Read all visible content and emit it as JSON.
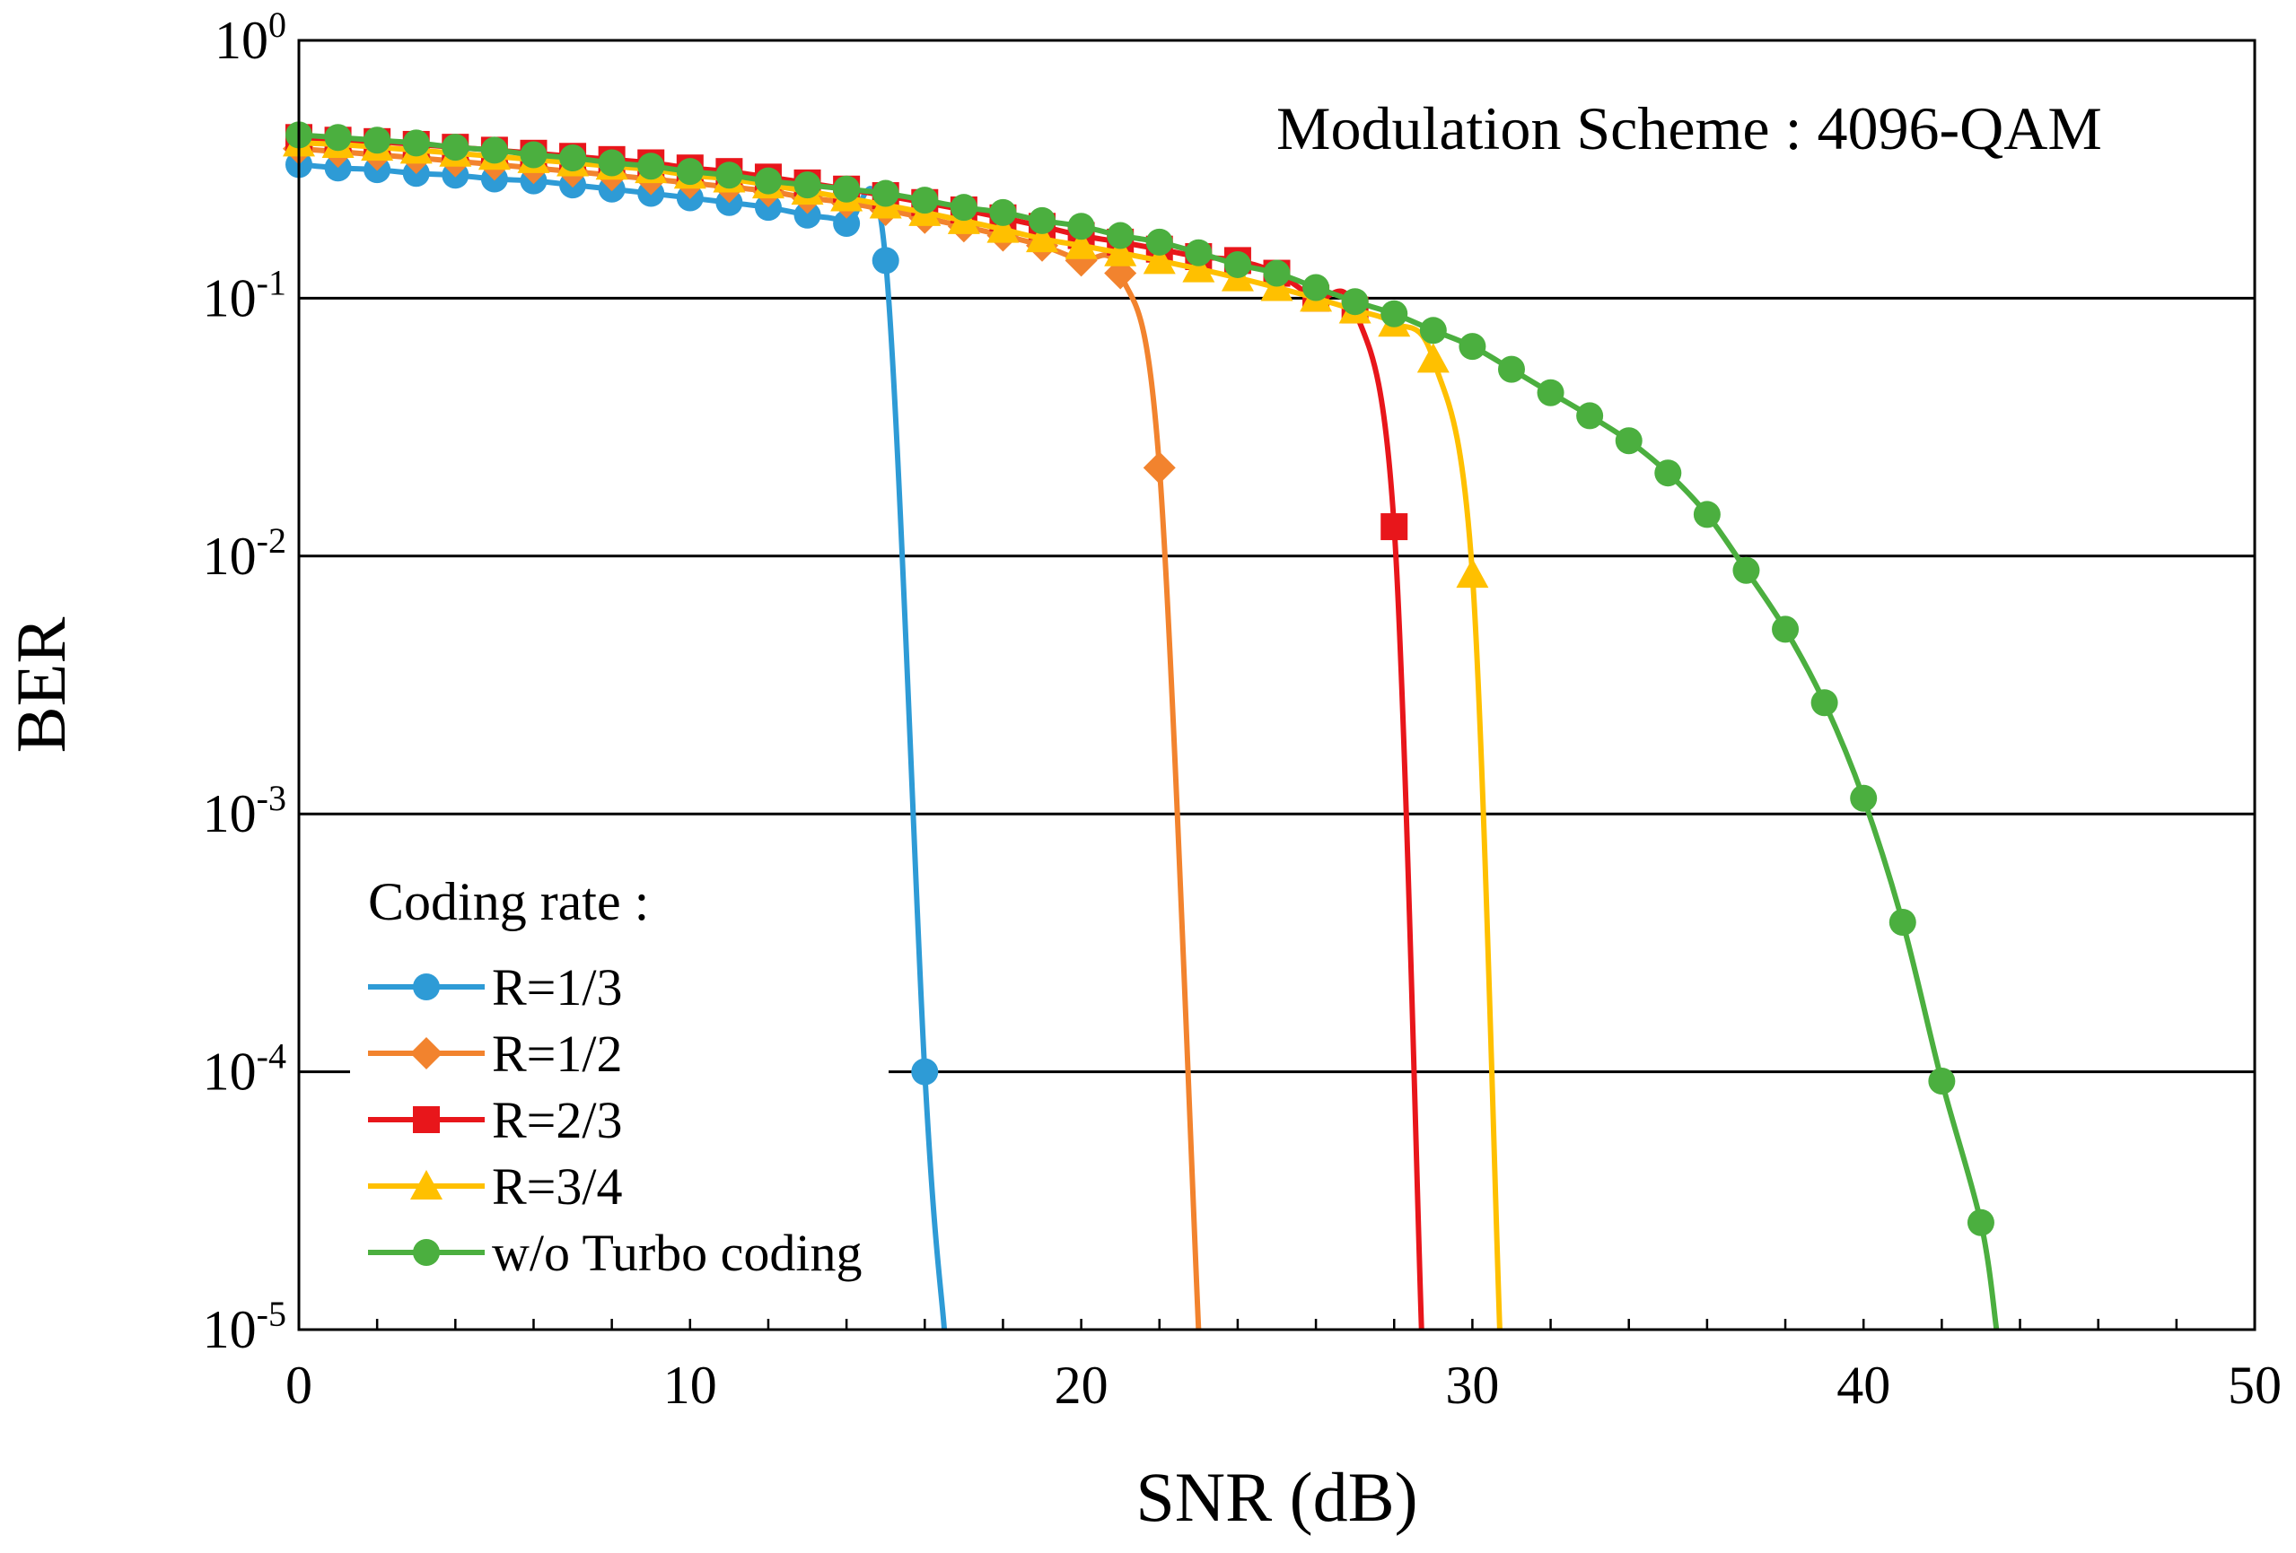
{
  "chart_data": {
    "type": "line",
    "title": "",
    "annotation": "Modulation Scheme : 4096-QAM",
    "xlabel": "SNR (dB)",
    "ylabel": "BER",
    "xlim": [
      0,
      50
    ],
    "ylim": [
      1e-05,
      1
    ],
    "yscale": "log",
    "x_ticks": [
      "0",
      "10",
      "20",
      "30",
      "40",
      "50"
    ],
    "y_ticks": [
      {
        "base": "10",
        "exp": "0",
        "value": 1
      },
      {
        "base": "10",
        "exp": "-1",
        "value": 0.1
      },
      {
        "base": "10",
        "exp": "-2",
        "value": 0.01
      },
      {
        "base": "10",
        "exp": "-3",
        "value": 0.001
      },
      {
        "base": "10",
        "exp": "-4",
        "value": 0.0001
      },
      {
        "base": "10",
        "exp": "-5",
        "value": 1e-05
      }
    ],
    "grid": "horizontal major lines",
    "legend": {
      "title": "Coding rate :",
      "position": "bottom-left"
    },
    "series": [
      {
        "name": "R=1/3",
        "color": "#2E9BD6",
        "marker": "circle",
        "x": [
          0,
          1,
          2,
          3,
          4,
          5,
          6,
          7,
          8,
          9,
          10,
          11,
          12,
          13,
          14,
          15,
          16
        ],
        "y": [
          0.33,
          0.32,
          0.315,
          0.305,
          0.3,
          0.29,
          0.285,
          0.275,
          0.265,
          0.255,
          0.245,
          0.235,
          0.225,
          0.21,
          0.195,
          0.14,
          0.0001
        ],
        "curve_end": {
          "x": 16.5,
          "y": 1e-05
        }
      },
      {
        "name": "R=1/2",
        "color": "#F2832E",
        "marker": "diamond",
        "x": [
          0,
          1,
          2,
          3,
          4,
          5,
          6,
          7,
          8,
          9,
          10,
          11,
          12,
          13,
          14,
          15,
          16,
          17,
          18,
          19,
          20,
          21,
          22
        ],
        "y": [
          0.38,
          0.37,
          0.36,
          0.35,
          0.34,
          0.33,
          0.32,
          0.31,
          0.3,
          0.29,
          0.28,
          0.27,
          0.26,
          0.245,
          0.235,
          0.22,
          0.205,
          0.19,
          0.175,
          0.16,
          0.14,
          0.125,
          0.022
        ],
        "curve_end": {
          "x": 23,
          "y": 1e-05
        }
      },
      {
        "name": "R=2/3",
        "color": "#E8161B",
        "marker": "square",
        "x": [
          0,
          1,
          2,
          3,
          4,
          5,
          6,
          7,
          8,
          9,
          10,
          11,
          12,
          13,
          14,
          15,
          16,
          17,
          18,
          19,
          20,
          21,
          22,
          23,
          24,
          25,
          26,
          27,
          28
        ],
        "y": [
          0.42,
          0.41,
          0.405,
          0.395,
          0.385,
          0.375,
          0.365,
          0.355,
          0.345,
          0.335,
          0.32,
          0.31,
          0.295,
          0.28,
          0.265,
          0.25,
          0.235,
          0.22,
          0.205,
          0.19,
          0.175,
          0.165,
          0.155,
          0.145,
          0.14,
          0.125,
          0.1,
          0.09,
          0.013
        ],
        "curve_end": {
          "x": 28.7,
          "y": 1e-05
        }
      },
      {
        "name": "R=3/4",
        "color": "#FFC000",
        "marker": "triangle",
        "x": [
          0,
          1,
          2,
          3,
          4,
          5,
          6,
          7,
          8,
          9,
          10,
          11,
          12,
          13,
          14,
          15,
          16,
          17,
          18,
          19,
          20,
          21,
          22,
          23,
          24,
          25,
          26,
          27,
          28,
          29,
          30
        ],
        "y": [
          0.4,
          0.395,
          0.385,
          0.375,
          0.365,
          0.355,
          0.345,
          0.335,
          0.325,
          0.315,
          0.3,
          0.29,
          0.275,
          0.26,
          0.245,
          0.23,
          0.215,
          0.2,
          0.185,
          0.17,
          0.16,
          0.15,
          0.14,
          0.13,
          0.12,
          0.11,
          0.1,
          0.09,
          0.08,
          0.058,
          0.0085
        ],
        "curve_end": {
          "x": 30.7,
          "y": 1e-05
        }
      },
      {
        "name": "w/o Turbo coding",
        "color": "#4BAF3F",
        "marker": "circle",
        "x": [
          0,
          1,
          2,
          3,
          4,
          5,
          6,
          7,
          8,
          9,
          10,
          11,
          12,
          13,
          14,
          15,
          16,
          17,
          18,
          19,
          20,
          21,
          22,
          23,
          24,
          25,
          26,
          27,
          28,
          29,
          30,
          31,
          32,
          33,
          34,
          35,
          36,
          37,
          38,
          39,
          40,
          41,
          42,
          43
        ],
        "y": [
          0.43,
          0.42,
          0.41,
          0.4,
          0.385,
          0.375,
          0.36,
          0.35,
          0.335,
          0.325,
          0.31,
          0.3,
          0.285,
          0.275,
          0.265,
          0.255,
          0.24,
          0.225,
          0.215,
          0.2,
          0.19,
          0.175,
          0.165,
          0.15,
          0.135,
          0.125,
          0.11,
          0.097,
          0.087,
          0.075,
          0.065,
          0.053,
          0.043,
          0.035,
          0.028,
          0.021,
          0.0145,
          0.0088,
          0.0052,
          0.0027,
          0.00115,
          0.00038,
          9.2e-05,
          2.6e-05
        ],
        "curve_end": {
          "x": 43.4,
          "y": 1e-05
        }
      }
    ]
  }
}
